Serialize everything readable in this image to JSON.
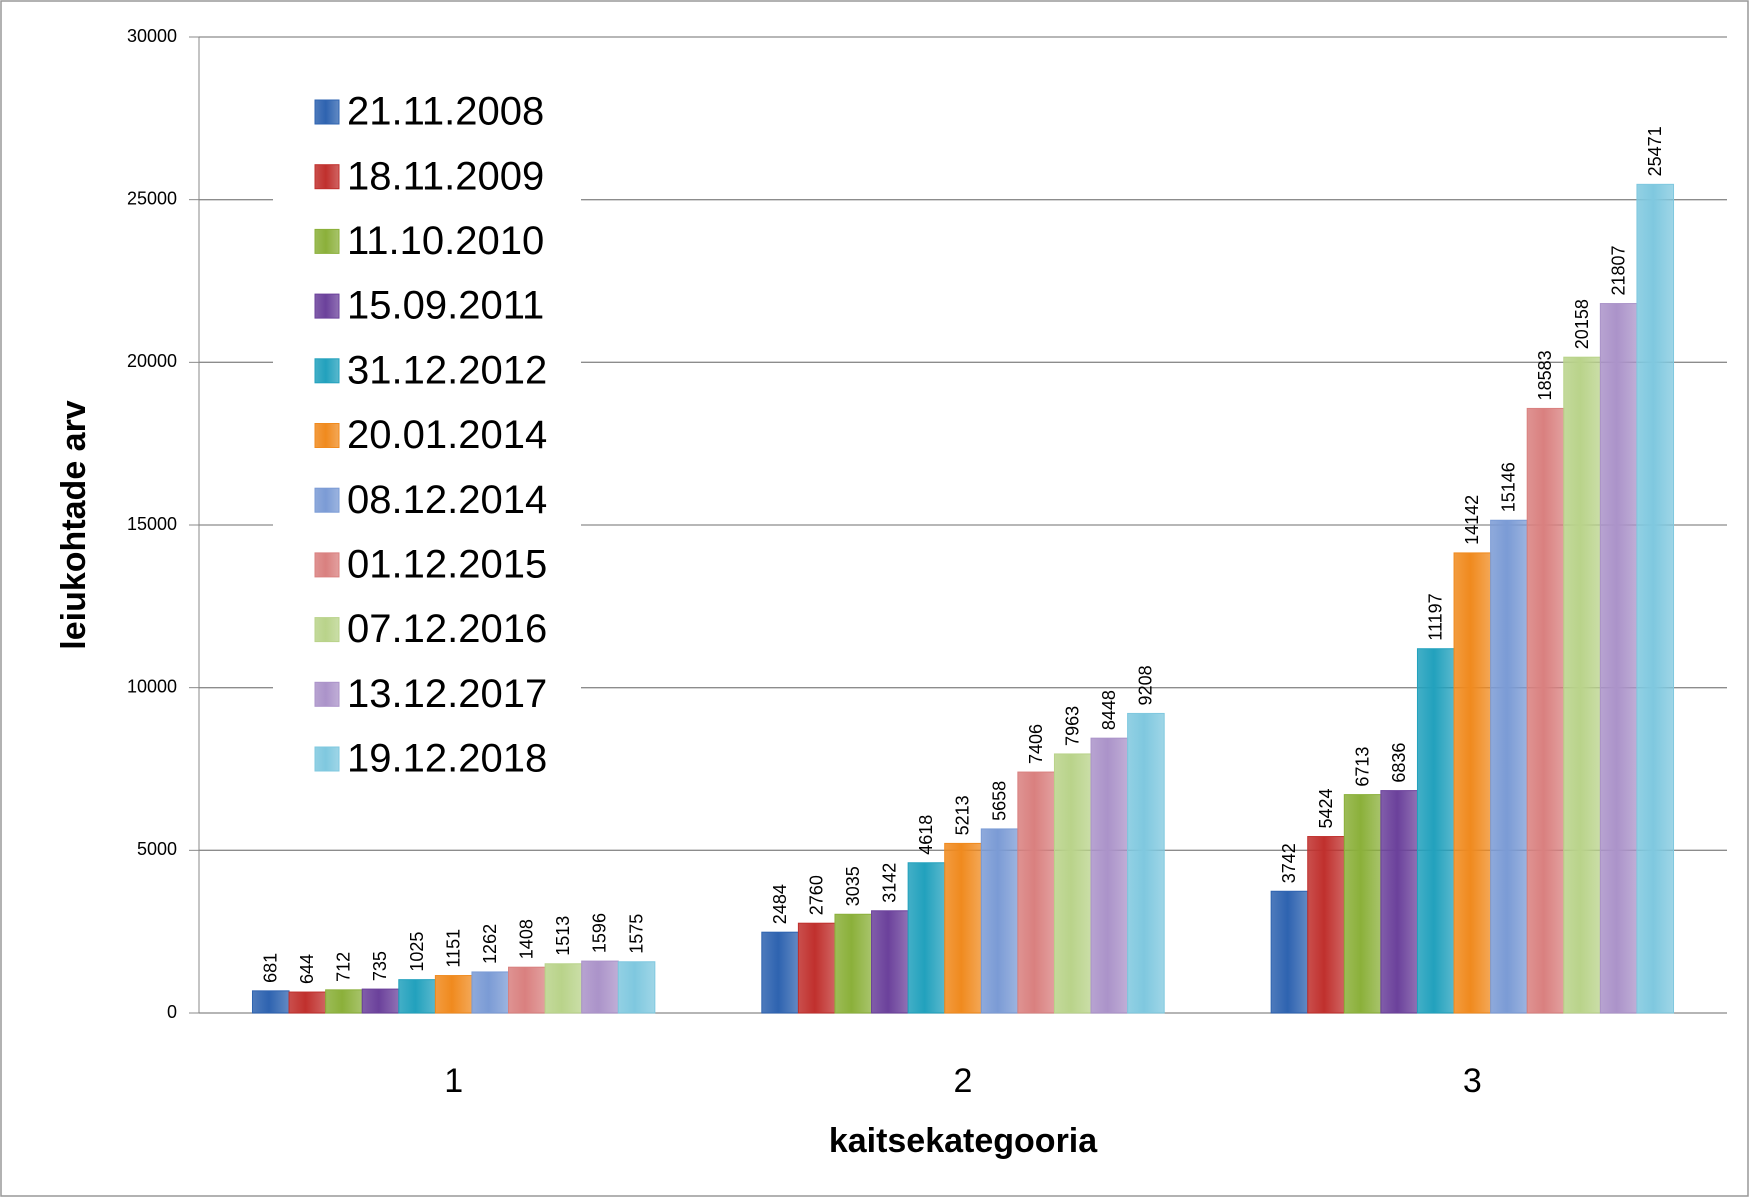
{
  "chart_data": {
    "type": "bar",
    "x_label": "kaitsekategooria",
    "y_label": "leiukohtade arv",
    "categories": [
      "1",
      "2",
      "3"
    ],
    "series": [
      {
        "name": "21.11.2008",
        "color": "#2e63b0",
        "values": [
          681,
          2484,
          3742
        ]
      },
      {
        "name": "18.11.2009",
        "color": "#c0302d",
        "values": [
          644,
          2760,
          5424
        ]
      },
      {
        "name": "11.10.2010",
        "color": "#8bb03a",
        "values": [
          712,
          3035,
          6713
        ]
      },
      {
        "name": "15.09.2011",
        "color": "#6b419b",
        "values": [
          735,
          3142,
          6836
        ]
      },
      {
        "name": "31.12.2012",
        "color": "#22a1bd",
        "values": [
          1025,
          4618,
          11197
        ]
      },
      {
        "name": "20.01.2014",
        "color": "#f08a1e",
        "values": [
          1151,
          5213,
          14142
        ]
      },
      {
        "name": "08.12.2014",
        "color": "#7b9bd5",
        "values": [
          1262,
          5658,
          15146
        ]
      },
      {
        "name": "01.12.2015",
        "color": "#d9807f",
        "values": [
          1408,
          7406,
          18583
        ]
      },
      {
        "name": "07.12.2016",
        "color": "#b9d38a",
        "values": [
          1513,
          7963,
          20158
        ]
      },
      {
        "name": "13.12.2017",
        "color": "#ab93c9",
        "values": [
          1596,
          8448,
          21807
        ]
      },
      {
        "name": "19.12.2018",
        "color": "#7fc8df",
        "values": [
          1575,
          9208,
          25471
        ]
      }
    ],
    "ylim": [
      0,
      30000
    ],
    "yticks": [
      0,
      5000,
      10000,
      15000,
      20000,
      25000,
      30000
    ],
    "grid": true,
    "legend": "top-left",
    "data_labels": true
  }
}
